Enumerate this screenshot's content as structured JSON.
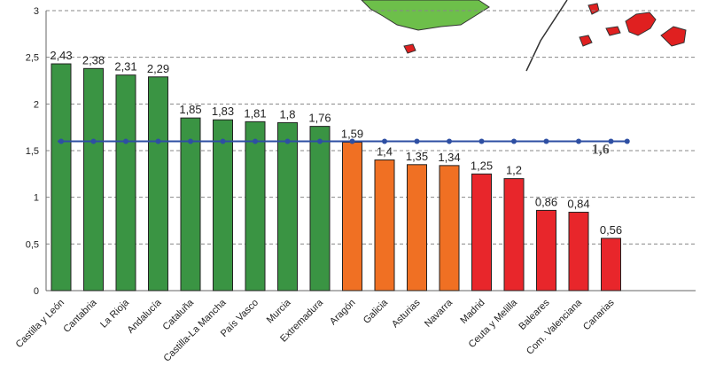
{
  "chart_data": {
    "type": "bar",
    "categories": [
      "Castilla y León",
      "Cantabria",
      "La Rioja",
      "Andalucía",
      "Cataluña",
      "Castilla-La Mancha",
      "País Vasco",
      "Murcia",
      "Extremadura",
      "Aragón",
      "Galicia",
      "Asturias",
      "Navarra",
      "Madrid",
      "Ceuta y Melilla",
      "Baleares",
      "Com. Valenciana",
      "Canarias"
    ],
    "values": [
      2.43,
      2.38,
      2.31,
      2.29,
      1.85,
      1.83,
      1.81,
      1.8,
      1.76,
      1.59,
      1.4,
      1.35,
      1.34,
      1.25,
      1.2,
      0.86,
      0.84,
      0.56
    ],
    "value_labels": [
      "2,43",
      "2,38",
      "2,31",
      "2,29",
      "1,85",
      "1,83",
      "1,81",
      "1,8",
      "1,76",
      "1,59",
      "1,4",
      "1,35",
      "1,34",
      "1,25",
      "1,2",
      "0,86",
      "0,84",
      "0,56"
    ],
    "bar_colors": [
      "#3a9443",
      "#3a9443",
      "#3a9443",
      "#3a9443",
      "#3a9443",
      "#3a9443",
      "#3a9443",
      "#3a9443",
      "#3a9443",
      "#f07023",
      "#f07023",
      "#f07023",
      "#f07023",
      "#e8262b",
      "#e8262b",
      "#e8262b",
      "#e8262b",
      "#e8262b"
    ],
    "y_ticks": [
      "0",
      "0,5",
      "1",
      "1,5",
      "2",
      "2,5",
      "3"
    ],
    "ylim": [
      0,
      3
    ],
    "reference_line": {
      "value": 1.6,
      "label": "1,6",
      "color": "#2e4fa3"
    },
    "grid": true,
    "title": "",
    "xlabel": "",
    "ylabel": ""
  },
  "decoration": {
    "map_land_color": "#6dbf4a",
    "map_island_color": "#e02020"
  }
}
